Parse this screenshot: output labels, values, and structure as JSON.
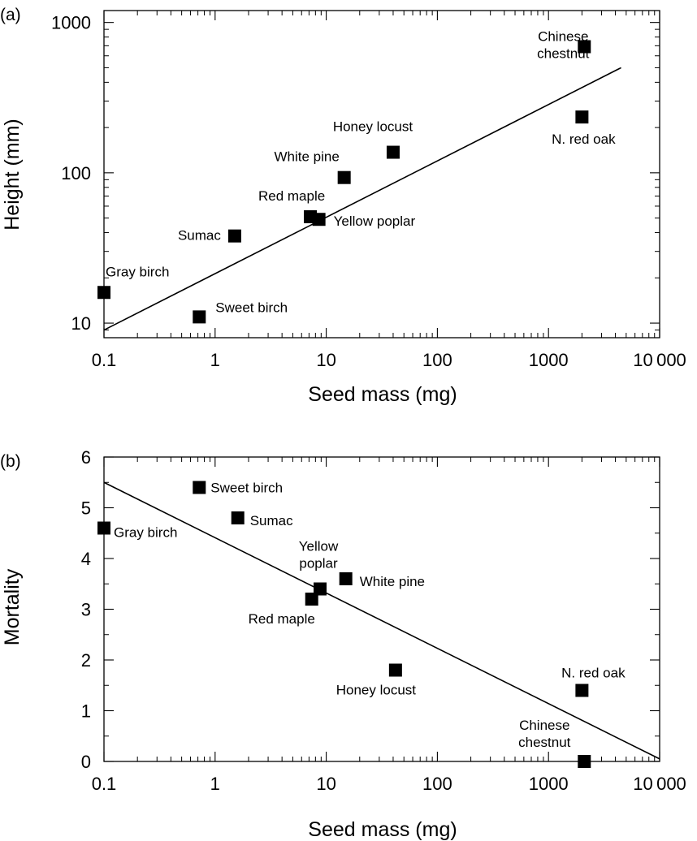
{
  "chart_data": [
    {
      "type": "scatter",
      "panel": "(a)",
      "xlabel": "Seed mass (mg)",
      "ylabel": "Height (mm)",
      "xscale": "log",
      "yscale": "log",
      "xlim": [
        0.1,
        10000
      ],
      "ylim": [
        8,
        1200
      ],
      "x_ticks": [
        {
          "value": 0.1,
          "label": "0.1"
        },
        {
          "value": 1,
          "label": "1"
        },
        {
          "value": 10,
          "label": "10"
        },
        {
          "value": 100,
          "label": "100"
        },
        {
          "value": 1000,
          "label": "1000"
        },
        {
          "value": 10000,
          "label": "10 000"
        }
      ],
      "y_ticks": [
        {
          "value": 10,
          "label": "10"
        },
        {
          "value": 100,
          "label": "100"
        },
        {
          "value": 1000,
          "label": "1000"
        }
      ],
      "points": [
        {
          "name": "Gray birch",
          "x": 0.1,
          "y": 16
        },
        {
          "name": "Sweet birch",
          "x": 0.72,
          "y": 11
        },
        {
          "name": "Sumac",
          "x": 1.5,
          "y": 38
        },
        {
          "name": "Red maple",
          "x": 7.2,
          "y": 51
        },
        {
          "name": "Yellow poplar",
          "x": 8.6,
          "y": 49
        },
        {
          "name": "White pine",
          "x": 14.5,
          "y": 93
        },
        {
          "name": "Honey locust",
          "x": 40,
          "y": 137
        },
        {
          "name": "N. red oak",
          "x": 2000,
          "y": 235
        },
        {
          "name": "Chinese chestnut",
          "x": 2100,
          "y": 690
        }
      ],
      "fit_line": {
        "x": [
          0.1,
          4500
        ],
        "y": [
          9,
          500
        ]
      },
      "grid": false,
      "marker": "square",
      "color": "#000000"
    },
    {
      "type": "scatter",
      "panel": "(b)",
      "xlabel": "Seed mass (mg)",
      "ylabel": "Mortality",
      "xscale": "log",
      "yscale": "linear",
      "xlim": [
        0.1,
        10000
      ],
      "ylim": [
        0,
        6
      ],
      "x_ticks": [
        {
          "value": 0.1,
          "label": "0.1"
        },
        {
          "value": 1,
          "label": "1"
        },
        {
          "value": 10,
          "label": "10"
        },
        {
          "value": 100,
          "label": "100"
        },
        {
          "value": 1000,
          "label": "1000"
        },
        {
          "value": 10000,
          "label": "10 000"
        }
      ],
      "y_ticks": [
        {
          "value": 0,
          "label": "0"
        },
        {
          "value": 1,
          "label": "1"
        },
        {
          "value": 2,
          "label": "2"
        },
        {
          "value": 3,
          "label": "3"
        },
        {
          "value": 4,
          "label": "4"
        },
        {
          "value": 5,
          "label": "5"
        },
        {
          "value": 6,
          "label": "6"
        }
      ],
      "points": [
        {
          "name": "Gray birch",
          "x": 0.1,
          "y": 4.6
        },
        {
          "name": "Sweet birch",
          "x": 0.72,
          "y": 5.4
        },
        {
          "name": "Sumac",
          "x": 1.6,
          "y": 4.8
        },
        {
          "name": "Red maple",
          "x": 7.4,
          "y": 3.2
        },
        {
          "name": "Yellow poplar",
          "x": 8.8,
          "y": 3.4
        },
        {
          "name": "White pine",
          "x": 15,
          "y": 3.6
        },
        {
          "name": "Honey locust",
          "x": 42,
          "y": 1.8
        },
        {
          "name": "N. red oak",
          "x": 2000,
          "y": 1.4
        },
        {
          "name": "Chinese chestnut",
          "x": 2100,
          "y": 0
        }
      ],
      "fit_line": {
        "x": [
          0.1,
          10000
        ],
        "y": [
          5.5,
          0.05
        ]
      },
      "grid": false,
      "marker": "square",
      "color": "#000000"
    }
  ]
}
